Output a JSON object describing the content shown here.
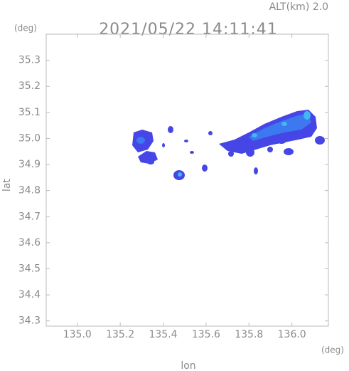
{
  "chart_data": {
    "type": "map",
    "title": "2021/05/22 14:11:41",
    "subtitle": "ALT(km) 2.0",
    "xlabel": "lon",
    "ylabel": "lat",
    "xunit": "(deg)",
    "yunit": "(deg)",
    "xlim": [
      134.855,
      136.17
    ],
    "ylim": [
      34.28,
      35.4
    ],
    "xticks": [
      {
        "value": 135.0,
        "label": "135.0"
      },
      135.2,
      135.4,
      135.6,
      135.8,
      {
        "value": 136.0,
        "label": "136.0"
      }
    ],
    "yticks": [
      34.3,
      34.4,
      34.5,
      34.6,
      34.7,
      34.8,
      34.9,
      {
        "value": 35.0,
        "label": "35.0"
      },
      35.1,
      35.2,
      35.3
    ]
  }
}
